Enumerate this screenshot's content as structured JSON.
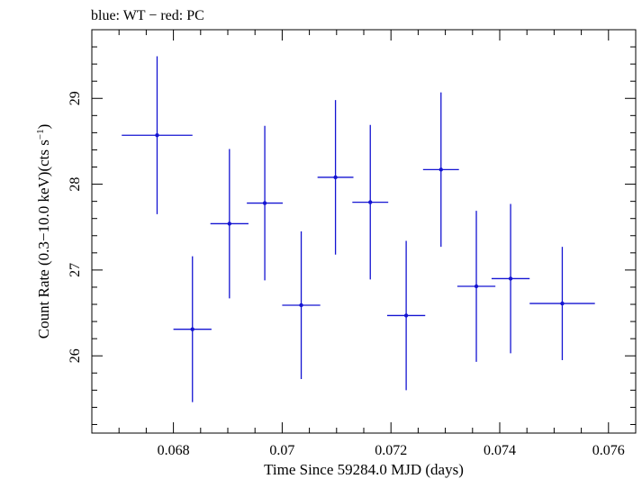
{
  "chart_data": {
    "type": "scatter",
    "title": "blue: WT − red: PC",
    "xlabel": "Time Since 59284.0 MJD (days)",
    "ylabel_main": "Count Rate (0.3−10.0 keV)(cts s",
    "ylabel_sup": "−1",
    "ylabel_close": ")",
    "xlim": [
      0.0665,
      0.0765
    ],
    "ylim": [
      25.1,
      29.8
    ],
    "x_ticks": [
      0.068,
      0.07,
      0.072,
      0.074,
      0.076
    ],
    "x_tick_labels": [
      "0.068",
      "0.07",
      "0.072",
      "0.074",
      "0.076"
    ],
    "y_ticks": [
      26,
      27,
      28,
      29
    ],
    "y_tick_labels": [
      "26",
      "27",
      "28",
      "29"
    ],
    "grid": false,
    "series": [
      {
        "color": "#1414d2",
        "points": [
          {
            "x": 0.0677,
            "y": 28.57,
            "xerr": 0.00065,
            "yerr": 0.92
          },
          {
            "x": 0.06835,
            "y": 26.31,
            "xerr": 0.00035,
            "yerr": 0.85
          },
          {
            "x": 0.06903,
            "y": 27.54,
            "xerr": 0.00035,
            "yerr": 0.87
          },
          {
            "x": 0.06968,
            "y": 27.78,
            "xerr": 0.00033,
            "yerr": 0.9
          },
          {
            "x": 0.07035,
            "y": 26.59,
            "xerr": 0.00035,
            "yerr": 0.86
          },
          {
            "x": 0.07098,
            "y": 28.08,
            "xerr": 0.00033,
            "yerr": 0.9
          },
          {
            "x": 0.07162,
            "y": 27.79,
            "xerr": 0.00033,
            "yerr": 0.9
          },
          {
            "x": 0.07228,
            "y": 26.47,
            "xerr": 0.00035,
            "yerr": 0.87
          },
          {
            "x": 0.07292,
            "y": 28.17,
            "xerr": 0.00033,
            "yerr": 0.9
          },
          {
            "x": 0.07357,
            "y": 26.81,
            "xerr": 0.00035,
            "yerr": 0.88
          },
          {
            "x": 0.0742,
            "y": 26.9,
            "xerr": 0.00035,
            "yerr": 0.87
          },
          {
            "x": 0.07515,
            "y": 26.61,
            "xerr": 0.0006,
            "yerr": 0.66
          }
        ]
      }
    ]
  }
}
